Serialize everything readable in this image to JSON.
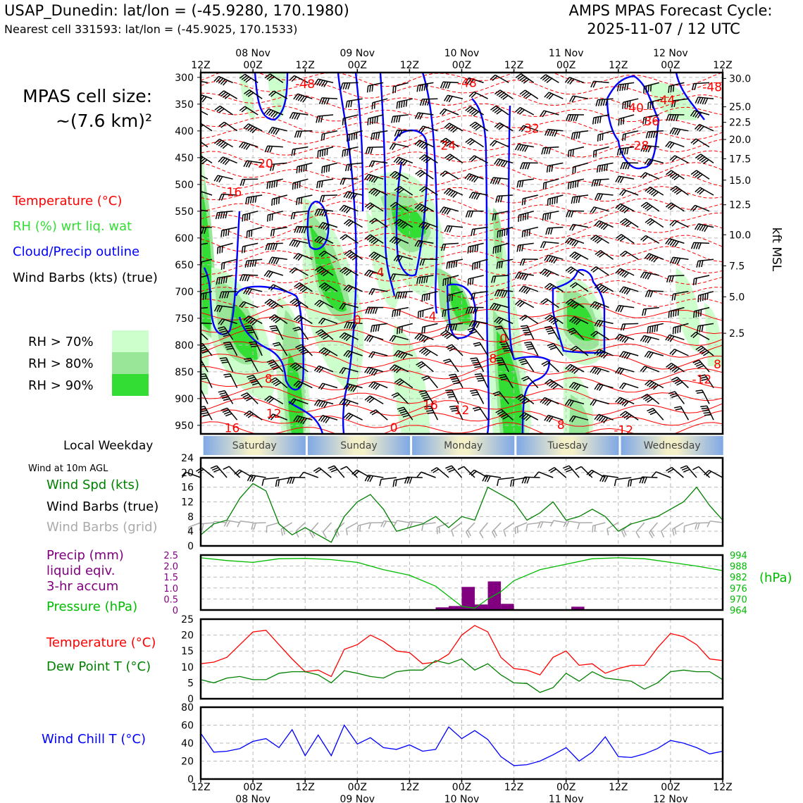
{
  "header": {
    "station": "USAP_Dunedin: lat/lon = (-45.9280, 170.1980)",
    "nearest": "Nearest cell 331593: lat/lon = (-45.9025, 170.1533)",
    "model": "AMPS MPAS Forecast Cycle:",
    "cycle": "2025-11-07 / 12 UTC"
  },
  "time_axis": {
    "hour_labels": [
      "12Z",
      "00Z",
      "12Z",
      "00Z",
      "12Z",
      "00Z",
      "12Z",
      "00Z",
      "12Z",
      "00Z",
      "12Z"
    ],
    "day_labels": [
      "08 Nov",
      "09 Nov",
      "10 Nov",
      "11 Nov",
      "12 Nov"
    ],
    "weekdays": [
      "Saturday",
      "Sunday",
      "Monday",
      "Tuesday",
      "Wednesday"
    ]
  },
  "left_panel": {
    "cell_size_line1": "MPAS cell size:",
    "cell_size_line2": "~(7.6 km)²",
    "legend_temperature": "Temperature (°C)",
    "legend_rh": "RH (%) wrt liq. wat",
    "legend_cloud": "Cloud/Precip outline",
    "legend_wind": "Wind Barbs (kts) (true)",
    "rh70": "RH > 70%",
    "rh80": "RH > 80%",
    "rh90": "RH > 90%",
    "local_weekday": "Local Weekday",
    "wind_at": "Wind at 10m AGL",
    "wind_spd": "Wind Spd (kts)",
    "wind_barbs_true": "Wind Barbs (true)",
    "wind_barbs_grid": "Wind Barbs (grid)",
    "precip_1": "Precip (mm)",
    "precip_2": "liquid eqiv.",
    "precip_3": "3-hr accum",
    "pressure": "Pressure (hPa)",
    "temperature": "Temperature (°C)",
    "dewpoint": "Dew Point T (°C)",
    "windchill": "Wind Chill T (°C)"
  },
  "colors": {
    "temperature": "#ff0000",
    "rh70": "#ccffcc",
    "rh80": "#99e699",
    "rh90": "#33dd33",
    "cloud": "#0000ff",
    "wind_spd": "#008000",
    "grid_barbs": "#aaaaaa",
    "precip": "#800080",
    "pressure": "#00bb00",
    "dewpoint": "#008000",
    "windchill": "#0000ff"
  },
  "chart_data": [
    {
      "type": "heatmap",
      "name": "cross-section",
      "y_ticks": [
        300,
        350,
        400,
        450,
        500,
        550,
        600,
        650,
        700,
        750,
        800,
        850,
        900,
        950
      ],
      "ylim": [
        966,
        291
      ],
      "right_label": "kft MSL",
      "kft_ticks": [
        "30.0",
        "25.0",
        "22.5",
        "20.0",
        "17.5",
        "15.0",
        "12.5",
        "10.0",
        "7.5",
        "5.0",
        "2.5"
      ],
      "kft_pressures": [
        302,
        355,
        384,
        416,
        452,
        492,
        538,
        594,
        652,
        710,
        778
      ],
      "temp_contour_labels": [
        {
          "x": 2.0,
          "p": 312,
          "v": "-48"
        },
        {
          "x": 5.1,
          "p": 310,
          "v": "-48"
        },
        {
          "x": 8.3,
          "p": 357,
          "v": "-40"
        },
        {
          "x": 4.7,
          "p": 427,
          "v": "-24"
        },
        {
          "x": 1.2,
          "p": 461,
          "v": "-20"
        },
        {
          "x": 0.6,
          "p": 514,
          "v": "-16"
        },
        {
          "x": 3.4,
          "p": 664,
          "v": "-4"
        },
        {
          "x": 4.4,
          "p": 746,
          "v": "-4"
        },
        {
          "x": 3.0,
          "p": 753,
          "v": "0"
        },
        {
          "x": 5.8,
          "p": 788,
          "v": "0"
        },
        {
          "x": 1.3,
          "p": 863,
          "v": "8"
        },
        {
          "x": 5.6,
          "p": 825,
          "v": "8"
        },
        {
          "x": 9.9,
          "p": 836,
          "v": "8"
        },
        {
          "x": 1.4,
          "p": 928,
          "v": "12"
        },
        {
          "x": 5.0,
          "p": 921,
          "v": "12"
        },
        {
          "x": 4.4,
          "p": 912,
          "v": "16"
        },
        {
          "x": 3.7,
          "p": 954,
          "v": "0"
        },
        {
          "x": 6.9,
          "p": 949,
          "v": "8"
        },
        {
          "x": 9.6,
          "p": 864,
          "v": "-12"
        },
        {
          "x": 8.1,
          "p": 959,
          "v": "-12"
        },
        {
          "x": 8.9,
          "p": 342,
          "v": "-44"
        },
        {
          "x": 8.6,
          "p": 382,
          "v": "-36"
        },
        {
          "x": 8.4,
          "p": 427,
          "v": "-28"
        },
        {
          "x": 6.3,
          "p": 395,
          "v": "-32"
        },
        {
          "x": 9.8,
          "p": 318,
          "v": "-48"
        },
        {
          "x": 0.6,
          "p": 955,
          "v": "16"
        }
      ],
      "barb_rows": [
        310,
        340,
        370,
        400,
        430,
        460,
        490,
        520,
        550,
        580,
        610,
        640,
        670,
        700,
        730,
        760,
        790,
        820,
        850,
        880,
        910,
        940
      ]
    },
    {
      "type": "line",
      "name": "wind-speed-10m",
      "ylim": [
        0,
        24
      ],
      "y_ticks": [
        0,
        4,
        8,
        12,
        16,
        20,
        24
      ],
      "x": [
        0,
        0.25,
        0.5,
        0.75,
        1,
        1.25,
        1.5,
        1.75,
        2,
        2.25,
        2.5,
        2.75,
        3,
        3.25,
        3.5,
        3.75,
        4,
        4.25,
        4.5,
        4.75,
        5,
        5.25,
        5.5,
        5.75,
        6,
        6.25,
        6.5,
        6.75,
        7,
        7.25,
        7.5,
        7.75,
        8,
        8.25,
        8.5,
        8.75,
        9,
        9.25,
        9.5,
        9.75,
        10
      ],
      "values": [
        3,
        6,
        7,
        13,
        17,
        15,
        6,
        3,
        5,
        3,
        1,
        8,
        12,
        14,
        10,
        4,
        5,
        6,
        8,
        5,
        8,
        7,
        16,
        14,
        12,
        7,
        9,
        12,
        7,
        8,
        10,
        8,
        4,
        6,
        7,
        8,
        10,
        12,
        16,
        11,
        7
      ]
    },
    {
      "type": "bar",
      "name": "precip-3hr",
      "ylim": [
        0,
        2.5
      ],
      "y_ticks": [
        "0",
        "0.5",
        "1.0",
        "1.5",
        "2.0",
        "2.5"
      ],
      "x": [
        4.5,
        4.75,
        5,
        5.25,
        5.5,
        5.75,
        7.1
      ],
      "values": [
        0.12,
        0.18,
        1.05,
        0.25,
        1.3,
        0.28,
        0.15
      ]
    },
    {
      "type": "line",
      "name": "pressure",
      "ylim": [
        964,
        994
      ],
      "y_ticks": [
        "964",
        "970",
        "976",
        "982",
        "988",
        "994"
      ],
      "right_label": "(hPa)",
      "x": [
        0,
        0.5,
        1,
        1.5,
        2,
        2.5,
        3,
        3.5,
        4,
        4.5,
        5,
        5.25,
        5.5,
        5.75,
        6,
        6.5,
        7,
        7.5,
        8,
        8.5,
        9,
        9.5,
        10
      ],
      "values": [
        992.5,
        991,
        990,
        992,
        992.2,
        991.5,
        990,
        986,
        983,
        977,
        966,
        965,
        970,
        974,
        980,
        986,
        989,
        992,
        992.5,
        992,
        990,
        988,
        985.5
      ]
    },
    {
      "type": "line",
      "name": "temperature-dewpoint",
      "ylim": [
        0,
        25
      ],
      "y_ticks": [
        0,
        5,
        10,
        15,
        20,
        25
      ],
      "x": [
        0,
        0.25,
        0.5,
        0.75,
        1,
        1.25,
        1.5,
        1.75,
        2,
        2.25,
        2.5,
        2.75,
        3,
        3.25,
        3.5,
        3.75,
        4,
        4.25,
        4.5,
        4.75,
        5,
        5.25,
        5.5,
        5.75,
        6,
        6.25,
        6.5,
        6.75,
        7,
        7.25,
        7.5,
        7.75,
        8,
        8.25,
        8.5,
        8.75,
        9,
        9.25,
        9.5,
        9.75,
        10
      ],
      "series": [
        {
          "name": "Temperature (°C)",
          "values": [
            11,
            11.5,
            13,
            17,
            21,
            21.5,
            17,
            12.5,
            8.5,
            9,
            7,
            15.5,
            17,
            20,
            18,
            15,
            14.5,
            11,
            11.5,
            14,
            20,
            23,
            21,
            13,
            9.5,
            9,
            7.5,
            13,
            15,
            10.5,
            11,
            8,
            9.5,
            10.5,
            10.5,
            16,
            20.5,
            19.5,
            17,
            12.5,
            12
          ]
        },
        {
          "name": "Dew Point T (°C)",
          "values": [
            6,
            5,
            6.5,
            7,
            6,
            6,
            8,
            8.5,
            8.5,
            7.5,
            5,
            8.8,
            8,
            7,
            6.5,
            8.5,
            9,
            9,
            12,
            11,
            12.5,
            9,
            11,
            7.5,
            5,
            4.8,
            2,
            3.5,
            8,
            5.5,
            8.5,
            6.5,
            6,
            5.5,
            3,
            5,
            8.5,
            9,
            8.5,
            8.5,
            6
          ]
        }
      ]
    },
    {
      "type": "line",
      "name": "wind-chill",
      "ylim": [
        0,
        80
      ],
      "y_ticks": [
        0,
        20,
        40,
        60,
        80
      ],
      "x": [
        0,
        0.25,
        0.5,
        0.75,
        1,
        1.25,
        1.5,
        1.75,
        2,
        2.25,
        2.5,
        2.75,
        3,
        3.25,
        3.5,
        3.75,
        4,
        4.25,
        4.5,
        4.75,
        5,
        5.25,
        5.5,
        5.75,
        6,
        6.25,
        6.5,
        6.75,
        7,
        7.25,
        7.5,
        7.75,
        8,
        8.25,
        8.5,
        8.75,
        9,
        9.25,
        9.5,
        9.75,
        10
      ],
      "values": [
        51,
        30,
        31,
        34,
        42,
        45,
        35,
        55,
        26,
        49,
        26,
        60,
        39,
        46,
        35,
        33,
        38,
        31,
        33,
        58,
        45,
        54,
        44,
        25,
        15,
        16,
        20,
        27,
        35,
        20,
        30,
        47,
        25,
        24,
        28,
        34,
        43,
        40,
        35,
        28,
        31
      ]
    }
  ]
}
